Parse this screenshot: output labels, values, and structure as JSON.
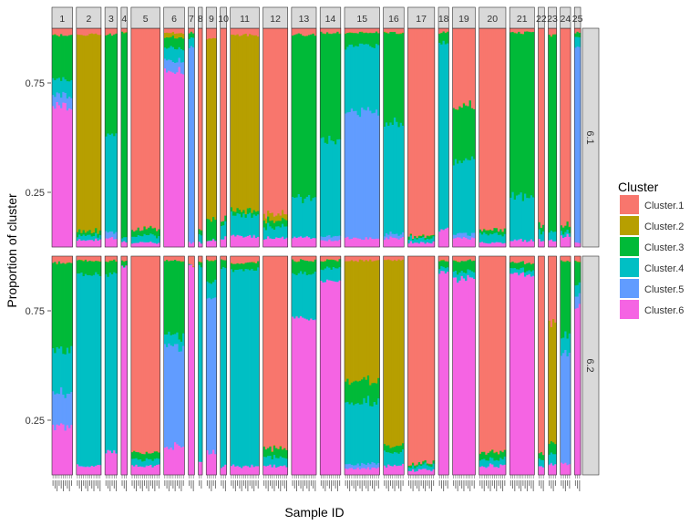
{
  "chart_data": {
    "type": "stacked-bar-faceted",
    "xlabel": "Sample ID",
    "ylabel": "Proportion of cluster",
    "yticks": [
      0.25,
      0.75
    ],
    "ylim": [
      0,
      1
    ],
    "legend": {
      "title": "Cluster",
      "position": "right",
      "entries": [
        {
          "name": "Cluster.1",
          "color": "#F8766D"
        },
        {
          "name": "Cluster.2",
          "color": "#B79F00"
        },
        {
          "name": "Cluster.3",
          "color": "#00BA38"
        },
        {
          "name": "Cluster.4",
          "color": "#00BFC4"
        },
        {
          "name": "Cluster.5",
          "color": "#619CFF"
        },
        {
          "name": "Cluster.6",
          "color": "#F564E3"
        }
      ]
    },
    "row_facets": [
      "6.1",
      "6.2"
    ],
    "column_facets": [
      {
        "label": "1",
        "bars": 10
      },
      {
        "label": "2",
        "bars": 12
      },
      {
        "label": "3",
        "bars": 6
      },
      {
        "label": "4",
        "bars": 3
      },
      {
        "label": "5",
        "bars": 14
      },
      {
        "label": "6",
        "bars": 10
      },
      {
        "label": "7",
        "bars": 3
      },
      {
        "label": "8",
        "bars": 2
      },
      {
        "label": "9",
        "bars": 5
      },
      {
        "label": "10",
        "bars": 3
      },
      {
        "label": "11",
        "bars": 14
      },
      {
        "label": "12",
        "bars": 12
      },
      {
        "label": "13",
        "bars": 12
      },
      {
        "label": "14",
        "bars": 10
      },
      {
        "label": "15",
        "bars": 17
      },
      {
        "label": "16",
        "bars": 10
      },
      {
        "label": "17",
        "bars": 13
      },
      {
        "label": "18",
        "bars": 5
      },
      {
        "label": "19",
        "bars": 11
      },
      {
        "label": "20",
        "bars": 13
      },
      {
        "label": "21",
        "bars": 12
      },
      {
        "label": "22",
        "bars": 3
      },
      {
        "label": "23",
        "bars": 4
      },
      {
        "label": "24",
        "bars": 5
      },
      {
        "label": "25",
        "bars": 3
      }
    ],
    "row_profiles": {
      "6.1": [
        {
          "facet": "1",
          "base": [
            0.03,
            0.0,
            0.2,
            0.07,
            0.05,
            0.65
          ],
          "note": "mostly Cluster.6 with Cluster.3 near top"
        },
        {
          "facet": "2",
          "base": [
            0.03,
            0.9,
            0.02,
            0.02,
            0.0,
            0.03
          ],
          "note": "mostly Cluster.2"
        },
        {
          "facet": "3",
          "base": [
            0.03,
            0.0,
            0.45,
            0.45,
            0.03,
            0.04
          ],
          "note": "Cluster.3 / Cluster.4"
        },
        {
          "facet": "4",
          "base": [
            0.02,
            0.0,
            0.94,
            0.02,
            0.0,
            0.02
          ],
          "note": "Cluster.3"
        },
        {
          "facet": "5",
          "base": [
            0.92,
            0.0,
            0.03,
            0.03,
            0.0,
            0.02
          ],
          "note": "Cluster.1"
        },
        {
          "facet": "6",
          "base": [
            0.02,
            0.02,
            0.05,
            0.06,
            0.05,
            0.8
          ],
          "note": "Cluster.6"
        },
        {
          "facet": "7",
          "base": [
            0.02,
            0.0,
            0.02,
            0.04,
            0.9,
            0.02
          ],
          "note": "Cluster.5"
        },
        {
          "facet": "8",
          "base": [
            0.92,
            0.0,
            0.02,
            0.04,
            0.0,
            0.02
          ],
          "note": "Cluster.1"
        },
        {
          "facet": "9",
          "base": [
            0.05,
            0.82,
            0.1,
            0.0,
            0.0,
            0.03
          ],
          "note": "Cluster.2"
        },
        {
          "facet": "10",
          "base": [
            0.88,
            0.0,
            0.02,
            0.06,
            0.0,
            0.04
          ],
          "note": "Cluster.1"
        },
        {
          "facet": "11",
          "base": [
            0.03,
            0.8,
            0.02,
            0.1,
            0.0,
            0.05
          ],
          "note": "Cluster.2"
        },
        {
          "facet": "12",
          "base": [
            0.85,
            0.03,
            0.03,
            0.05,
            0.0,
            0.04
          ],
          "note": "Cluster.1"
        },
        {
          "facet": "13",
          "base": [
            0.03,
            0.0,
            0.75,
            0.18,
            0.0,
            0.04
          ],
          "note": "Cluster.3"
        },
        {
          "facet": "14",
          "base": [
            0.02,
            0.0,
            0.48,
            0.45,
            0.02,
            0.03
          ],
          "note": "Cluster.3 / Cluster.4"
        },
        {
          "facet": "15",
          "base": [
            0.02,
            0.0,
            0.06,
            0.3,
            0.58,
            0.04
          ],
          "note": "Cluster.5 / Cluster.4"
        },
        {
          "facet": "16",
          "base": [
            0.02,
            0.0,
            0.4,
            0.52,
            0.02,
            0.04
          ],
          "note": "Cluster.4 / Cluster.3"
        },
        {
          "facet": "17",
          "base": [
            0.95,
            0.0,
            0.01,
            0.02,
            0.0,
            0.02
          ],
          "note": "Cluster.1"
        },
        {
          "facet": "18",
          "base": [
            0.02,
            0.0,
            0.05,
            0.85,
            0.0,
            0.08
          ],
          "note": "Cluster.4"
        },
        {
          "facet": "19",
          "base": [
            0.35,
            0.0,
            0.25,
            0.34,
            0.02,
            0.04
          ],
          "note": "mixed"
        },
        {
          "facet": "20",
          "base": [
            0.92,
            0.0,
            0.02,
            0.04,
            0.0,
            0.02
          ],
          "note": "Cluster.1"
        },
        {
          "facet": "21",
          "base": [
            0.02,
            0.0,
            0.75,
            0.2,
            0.0,
            0.03
          ],
          "note": "Cluster.3"
        },
        {
          "facet": "22",
          "base": [
            0.9,
            0.0,
            0.03,
            0.04,
            0.0,
            0.03
          ],
          "note": "Cluster.1"
        },
        {
          "facet": "23",
          "base": [
            0.03,
            0.0,
            0.9,
            0.04,
            0.0,
            0.03
          ],
          "note": "Cluster.3"
        },
        {
          "facet": "24",
          "base": [
            0.9,
            0.0,
            0.03,
            0.02,
            0.0,
            0.05
          ],
          "note": "Cluster.1"
        },
        {
          "facet": "25",
          "base": [
            0.02,
            0.0,
            0.02,
            0.04,
            0.9,
            0.02
          ],
          "note": "Cluster.5"
        }
      ],
      "6.2": [
        {
          "facet": "1",
          "base": [
            0.03,
            0.0,
            0.4,
            0.2,
            0.15,
            0.22
          ],
          "note": "mixed"
        },
        {
          "facet": "2",
          "base": [
            0.02,
            0.0,
            0.06,
            0.88,
            0.0,
            0.04
          ],
          "note": "Cluster.4"
        },
        {
          "facet": "3",
          "base": [
            0.02,
            0.0,
            0.06,
            0.82,
            0.0,
            0.1
          ],
          "note": "Cluster.4"
        },
        {
          "facet": "4",
          "base": [
            0.02,
            0.0,
            0.02,
            0.0,
            0.0,
            0.96
          ],
          "note": "Cluster.6"
        },
        {
          "facet": "5",
          "base": [
            0.9,
            0.0,
            0.03,
            0.03,
            0.0,
            0.04
          ],
          "note": "Cluster.1"
        },
        {
          "facet": "6",
          "base": [
            0.02,
            0.0,
            0.35,
            0.05,
            0.45,
            0.13
          ],
          "note": "Cluster.3 / Cluster.5"
        },
        {
          "facet": "7",
          "base": [
            0.04,
            0.0,
            0.0,
            0.0,
            0.0,
            0.96
          ],
          "note": "Cluster.6"
        },
        {
          "facet": "8",
          "base": [
            0.02,
            0.0,
            0.02,
            0.9,
            0.0,
            0.06
          ],
          "note": "Cluster.4"
        },
        {
          "facet": "9",
          "base": [
            0.02,
            0.0,
            0.1,
            0.08,
            0.7,
            0.1
          ],
          "note": "Cluster.5"
        },
        {
          "facet": "10",
          "base": [
            0.02,
            0.0,
            0.04,
            0.9,
            0.0,
            0.04
          ],
          "note": "Cluster.4"
        },
        {
          "facet": "11",
          "base": [
            0.03,
            0.0,
            0.03,
            0.9,
            0.0,
            0.04
          ],
          "note": "Cluster.4"
        },
        {
          "facet": "12",
          "base": [
            0.88,
            0.0,
            0.04,
            0.04,
            0.0,
            0.04
          ],
          "note": "Cluster.1"
        },
        {
          "facet": "13",
          "base": [
            0.02,
            0.0,
            0.06,
            0.2,
            0.0,
            0.72
          ],
          "note": "Cluster.6"
        },
        {
          "facet": "14",
          "base": [
            0.02,
            0.0,
            0.04,
            0.06,
            0.0,
            0.88
          ],
          "note": "Cluster.6"
        },
        {
          "facet": "15",
          "base": [
            0.02,
            0.55,
            0.1,
            0.28,
            0.02,
            0.03
          ],
          "note": "Cluster.2 / Cluster.4"
        },
        {
          "facet": "16",
          "base": [
            0.02,
            0.85,
            0.03,
            0.06,
            0.0,
            0.04
          ],
          "note": "Cluster.2"
        },
        {
          "facet": "17",
          "base": [
            0.95,
            0.0,
            0.01,
            0.02,
            0.0,
            0.02
          ],
          "note": "Cluster.1"
        },
        {
          "facet": "18",
          "base": [
            0.02,
            0.0,
            0.03,
            0.02,
            0.0,
            0.93
          ],
          "note": "Cluster.6"
        },
        {
          "facet": "19",
          "base": [
            0.02,
            0.0,
            0.05,
            0.03,
            0.0,
            0.9
          ],
          "note": "Cluster.6"
        },
        {
          "facet": "20",
          "base": [
            0.9,
            0.0,
            0.03,
            0.03,
            0.0,
            0.04
          ],
          "note": "Cluster.1"
        },
        {
          "facet": "21",
          "base": [
            0.03,
            0.0,
            0.03,
            0.02,
            0.0,
            0.92
          ],
          "note": "Cluster.6"
        },
        {
          "facet": "22",
          "base": [
            0.9,
            0.0,
            0.03,
            0.03,
            0.0,
            0.04
          ],
          "note": "Cluster.1"
        },
        {
          "facet": "23",
          "base": [
            0.3,
            0.55,
            0.05,
            0.05,
            0.0,
            0.05
          ],
          "note": "Cluster.2 / Cluster.1"
        },
        {
          "facet": "24",
          "base": [
            0.02,
            0.0,
            0.35,
            0.08,
            0.5,
            0.05
          ],
          "note": "Cluster.5 / Cluster.3"
        },
        {
          "facet": "25",
          "base": [
            0.02,
            0.0,
            0.1,
            0.05,
            0.05,
            0.78
          ],
          "note": "Cluster.6"
        }
      ]
    }
  }
}
